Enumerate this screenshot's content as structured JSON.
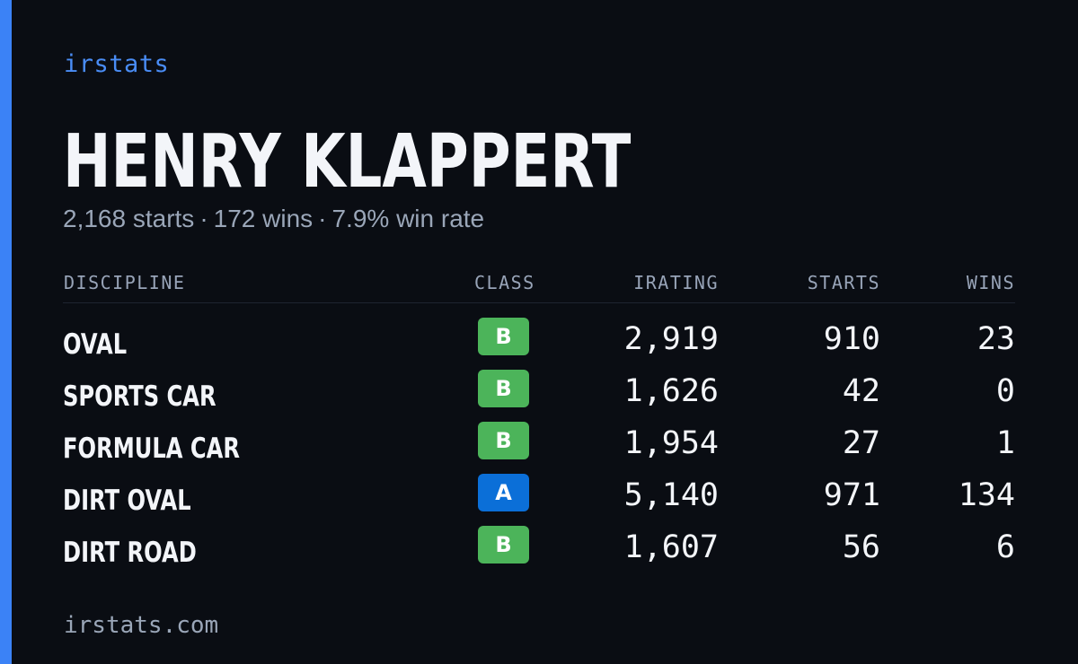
{
  "brand": "irstats",
  "driver": {
    "name": "HENRY KLAPPERT",
    "starts_text": "2,168 starts",
    "wins_text": "172 wins",
    "win_rate_text": "7.9% win rate",
    "separator": "·"
  },
  "table": {
    "headers": {
      "discipline": "DISCIPLINE",
      "class": "CLASS",
      "irating": "IRATING",
      "starts": "STARTS",
      "wins": "WINS"
    },
    "rows": [
      {
        "discipline": "OVAL",
        "class": "B",
        "irating": "2,919",
        "starts": "910",
        "wins": "23"
      },
      {
        "discipline": "SPORTS CAR",
        "class": "B",
        "irating": "1,626",
        "starts": "42",
        "wins": "0"
      },
      {
        "discipline": "FORMULA CAR",
        "class": "B",
        "irating": "1,954",
        "starts": "27",
        "wins": "1"
      },
      {
        "discipline": "DIRT OVAL",
        "class": "A",
        "irating": "5,140",
        "starts": "971",
        "wins": "134"
      },
      {
        "discipline": "DIRT ROAD",
        "class": "B",
        "irating": "1,607",
        "starts": "56",
        "wins": "6"
      }
    ]
  },
  "class_colors": {
    "A": "#0b6fd8",
    "B": "#4cb45a"
  },
  "accent_color": "#3b82f6",
  "footer": "irstats.com"
}
